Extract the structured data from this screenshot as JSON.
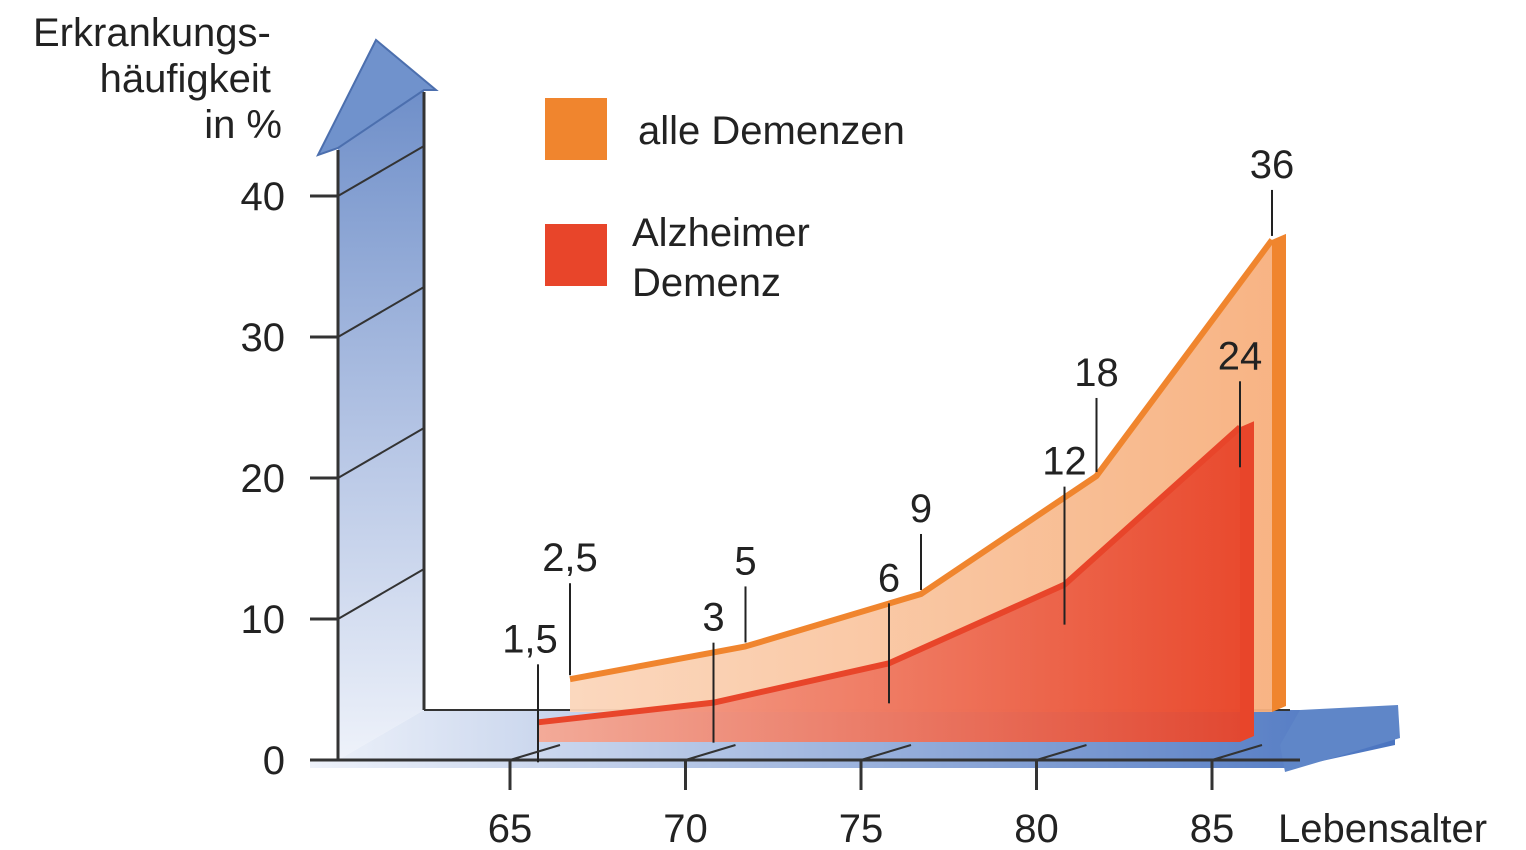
{
  "chart_data": {
    "type": "area",
    "ylabel": "Erkrankungs-\nhäufigkeit\nin %",
    "xlabel": "Lebensalter",
    "y_ticks": [
      "0",
      "10",
      "20",
      "30",
      "40"
    ],
    "y_tick_values": [
      0,
      10,
      20,
      30,
      40
    ],
    "ylim": [
      0,
      40
    ],
    "x_ticks": [
      "65",
      "70",
      "75",
      "80",
      "85"
    ],
    "x_tick_values": [
      65,
      70,
      75,
      80,
      85
    ],
    "xlim": [
      65,
      85
    ],
    "legend_position": "top",
    "series": [
      {
        "name": "alle Demenzen",
        "color": "#f0852e",
        "fill": "#f7b98a",
        "x": [
          65,
          70,
          75,
          80,
          85
        ],
        "values": [
          2.5,
          5,
          9,
          18,
          36
        ],
        "value_labels": [
          "2,5",
          "5",
          "9",
          "18",
          "36"
        ]
      },
      {
        "name": "Alzheimer Demenz",
        "legend_label_lines": [
          "Alzheimer",
          "Demenz"
        ],
        "color": "#e8452a",
        "fill": "#ee6c54",
        "x": [
          65,
          70,
          75,
          80,
          85
        ],
        "values": [
          1.5,
          3,
          6,
          12,
          24
        ],
        "value_labels": [
          "1,5",
          "3",
          "6",
          "12",
          "24"
        ]
      }
    ]
  }
}
